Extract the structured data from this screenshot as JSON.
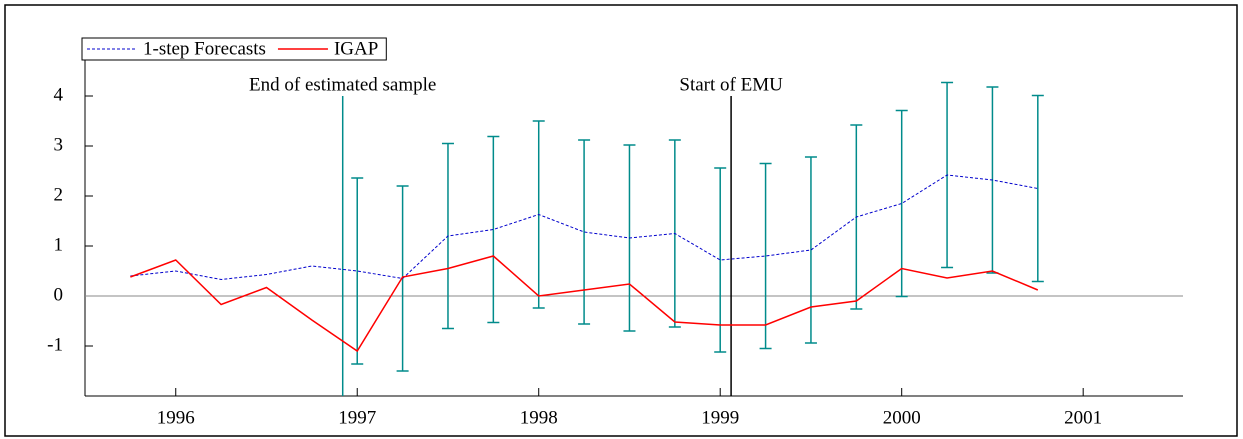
{
  "chart_data": {
    "type": "line",
    "x": [
      1995.75,
      1996,
      1996.25,
      1996.5,
      1996.75,
      1997,
      1997.25,
      1997.5,
      1997.75,
      1998,
      1998.25,
      1998.5,
      1998.75,
      1999,
      1999.25,
      1999.5,
      1999.75,
      2000,
      2000.25,
      2000.5,
      2000.75
    ],
    "series": [
      {
        "name": "1-step Forecasts",
        "color": "#0000cc",
        "dashed": true,
        "values": [
          0.4,
          0.5,
          0.33,
          0.43,
          0.6,
          0.5,
          0.35,
          1.2,
          1.33,
          1.63,
          1.28,
          1.16,
          1.25,
          0.72,
          0.8,
          0.92,
          1.58,
          1.85,
          2.42,
          2.32,
          2.15
        ],
        "errors": [
          null,
          null,
          null,
          null,
          null,
          1.86,
          1.85,
          1.85,
          1.86,
          1.87,
          1.84,
          1.86,
          1.87,
          1.84,
          1.85,
          1.86,
          1.84,
          1.86,
          1.85,
          1.86,
          1.86
        ],
        "error_color": "#008b8b"
      },
      {
        "name": "IGAP",
        "color": "#ff0000",
        "dashed": false,
        "values": [
          0.38,
          0.72,
          -0.17,
          0.17,
          -0.48,
          -1.1,
          0.38,
          0.55,
          0.8,
          0.0,
          0.12,
          0.24,
          -0.52,
          -0.58,
          -0.58,
          -0.22,
          -0.1,
          0.55,
          0.36,
          0.5,
          0.12
        ]
      }
    ],
    "annotations": [
      {
        "text": "End of estimated sample",
        "x": 1996.92
      },
      {
        "text": "Start of EMU",
        "x": 1999.06
      }
    ],
    "xlim": [
      1995.5,
      2001.55
    ],
    "xticks": [
      1996,
      1997,
      1998,
      1999,
      2000,
      2001
    ],
    "ylim": [
      -2,
      4.5
    ],
    "yticks": [
      -1,
      0,
      1,
      2,
      3,
      4
    ],
    "zero_line": true,
    "legend": "top-left"
  }
}
